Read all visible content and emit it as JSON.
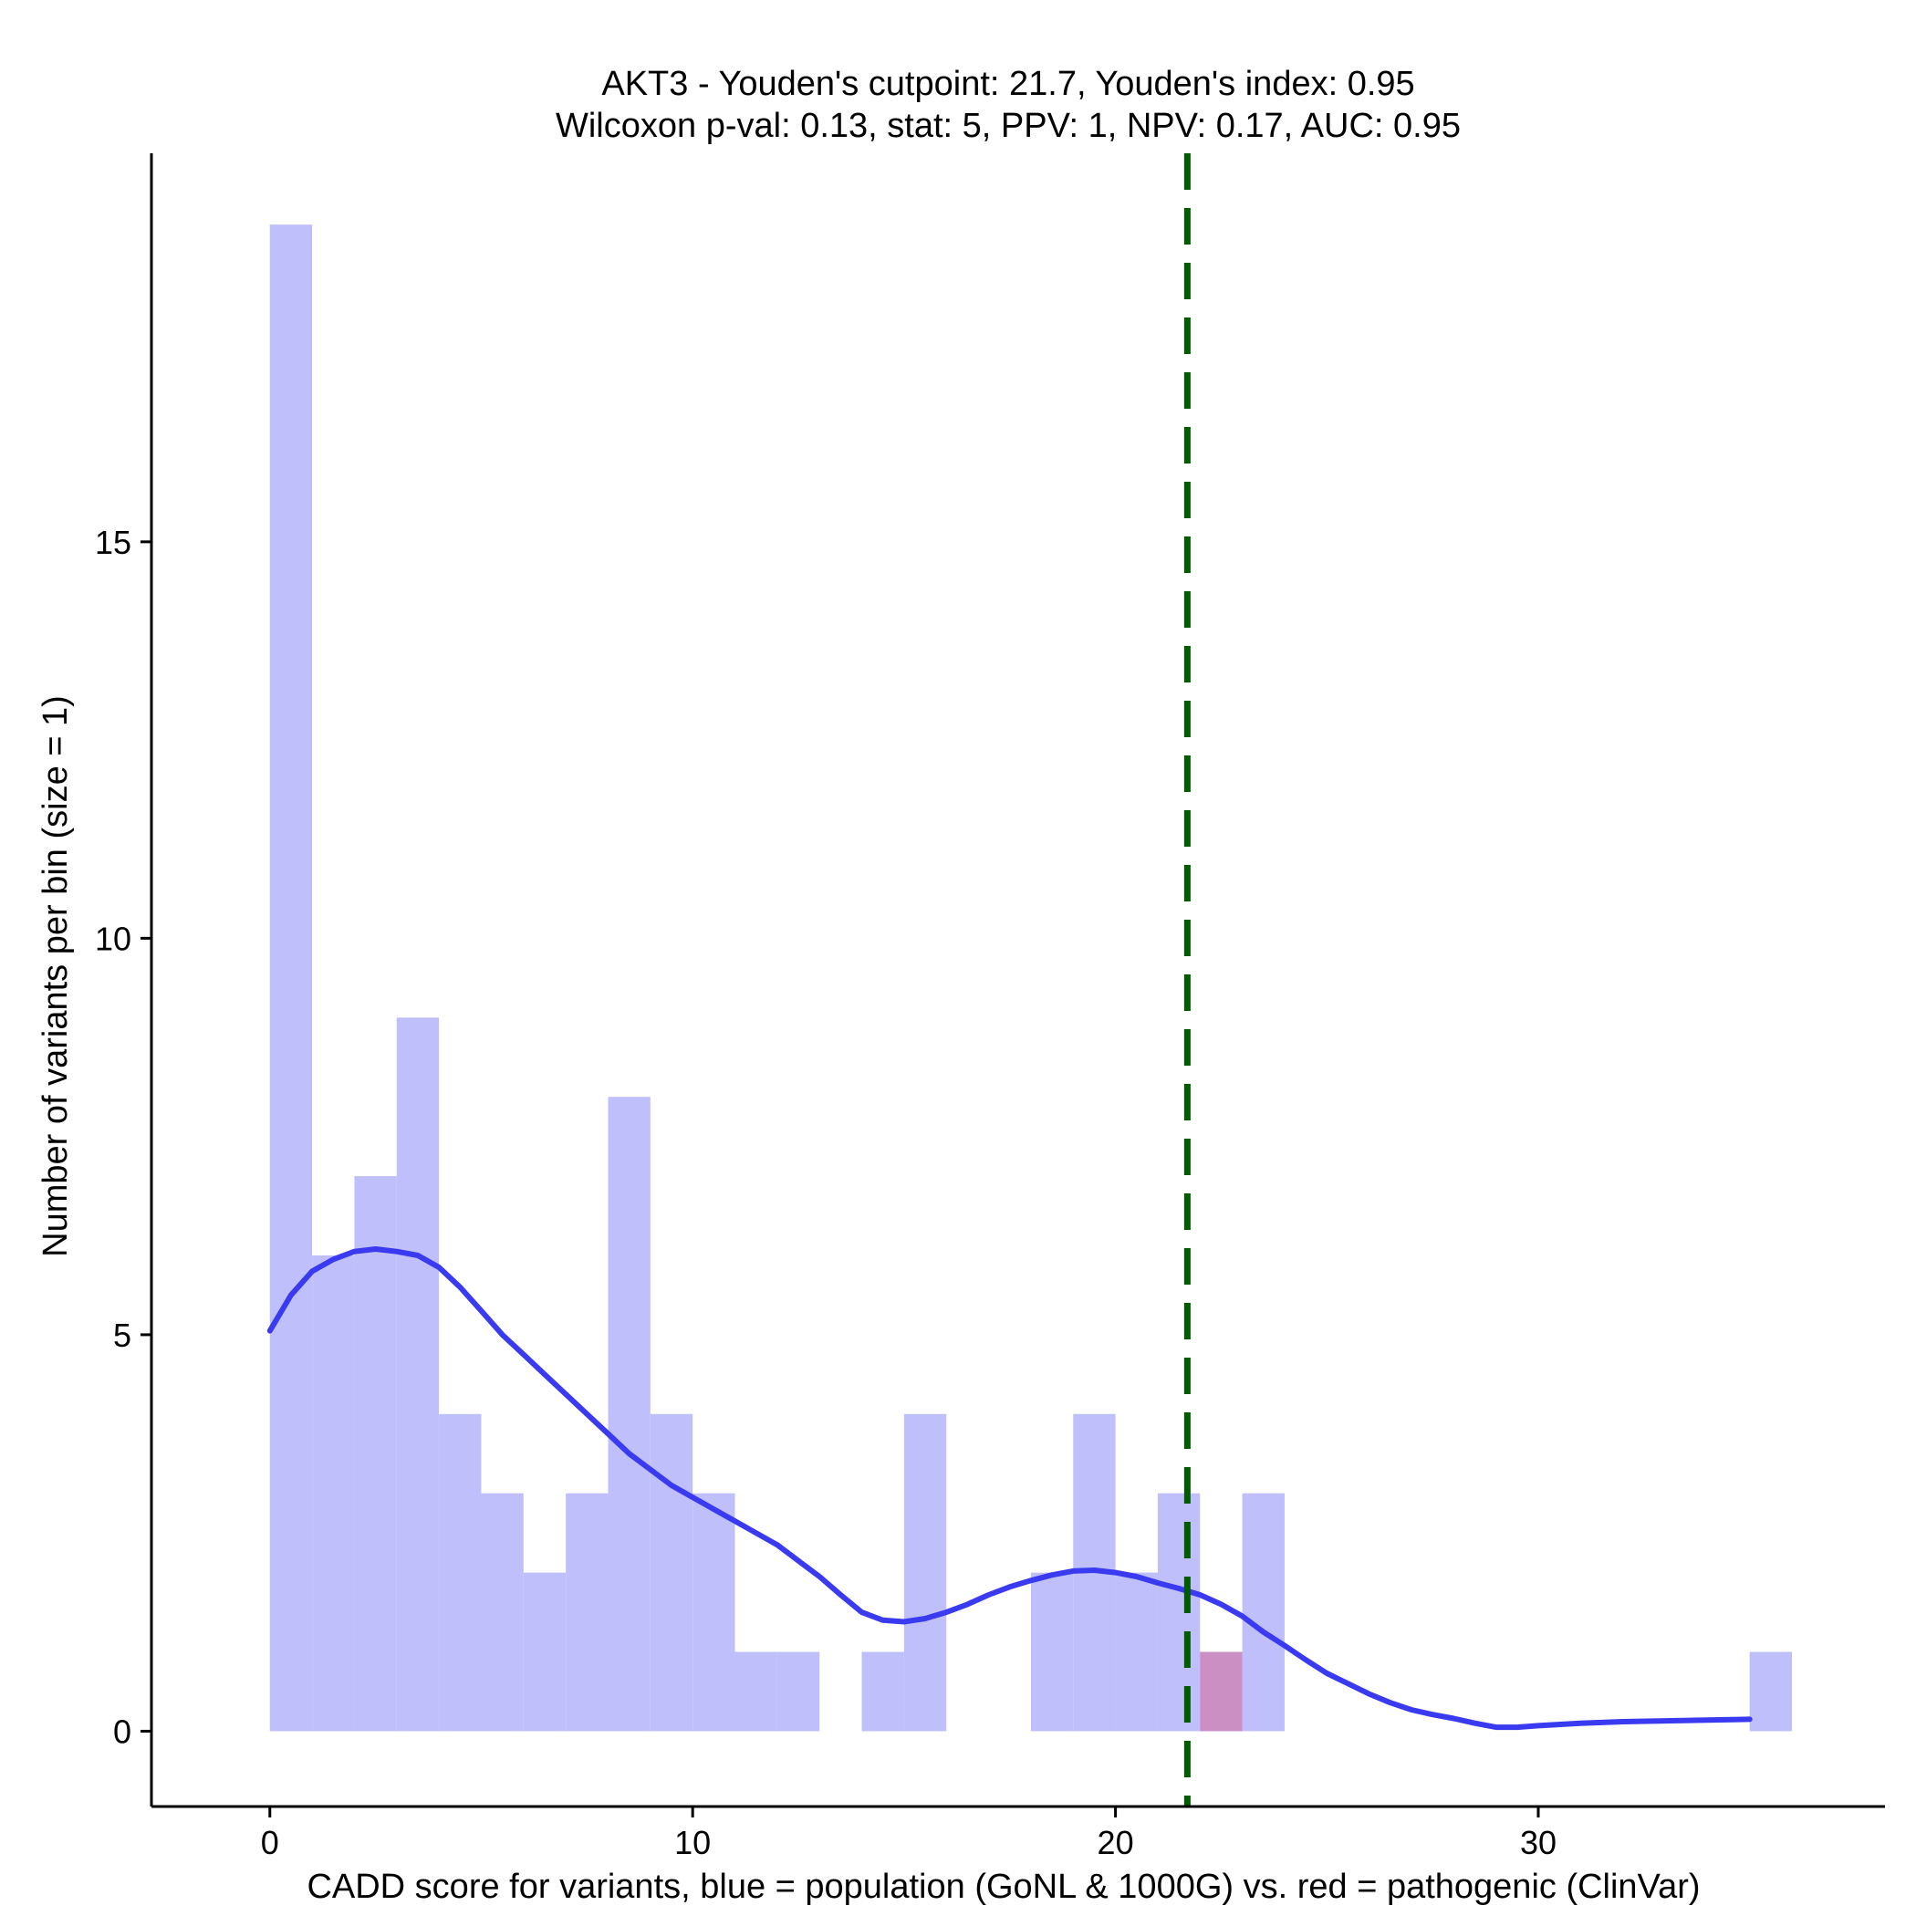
{
  "chart_data": {
    "type": "bar",
    "title": "AKT3 - Youden's cutpoint: 21.7, Youden's index: 0.95",
    "subtitle": "Wilcoxon p-val: 0.13, stat: 5, PPV: 1, NPV: 0.17, AUC: 0.95",
    "xlabel": "CADD score for variants, blue = population (GoNL & 1000G) vs. red = pathogenic (ClinVar)",
    "ylabel": "Number of variants per bin (size = 1)",
    "xlim": [
      -2.8,
      38.2
    ],
    "ylim": [
      -0.95,
      19.9
    ],
    "x_ticks": [
      0,
      10,
      20,
      30
    ],
    "y_ticks": [
      0,
      5,
      10,
      15
    ],
    "bin_width": 1,
    "grid": false,
    "series": [
      {
        "color": "#bfbffb",
        "bins": [
          {
            "x": 0,
            "count": 19
          },
          {
            "x": 1,
            "count": 6
          },
          {
            "x": 2,
            "count": 7
          },
          {
            "x": 3,
            "count": 9
          },
          {
            "x": 4,
            "count": 4
          },
          {
            "x": 5,
            "count": 3
          },
          {
            "x": 6,
            "count": 2
          },
          {
            "x": 7,
            "count": 3
          },
          {
            "x": 8,
            "count": 8
          },
          {
            "x": 9,
            "count": 4
          },
          {
            "x": 10,
            "count": 3
          },
          {
            "x": 11,
            "count": 1
          },
          {
            "x": 12,
            "count": 1
          },
          {
            "x": 14,
            "count": 1
          },
          {
            "x": 15,
            "count": 4
          },
          {
            "x": 18,
            "count": 2
          },
          {
            "x": 19,
            "count": 4
          },
          {
            "x": 20,
            "count": 2
          },
          {
            "x": 21,
            "count": 3
          },
          {
            "x": 22,
            "count": 1
          },
          {
            "x": 23,
            "count": 3
          },
          {
            "x": 35,
            "count": 1
          }
        ]
      },
      {
        "color": "#cc8fc4",
        "bins": [
          {
            "x": 22,
            "count": 1
          }
        ]
      }
    ],
    "density_curve": {
      "color": "#3a3af0",
      "points": [
        [
          0,
          5.05
        ],
        [
          0.5,
          5.5
        ],
        [
          1,
          5.8
        ],
        [
          1.5,
          5.95
        ],
        [
          2,
          6.05
        ],
        [
          2.5,
          6.08
        ],
        [
          3,
          6.05
        ],
        [
          3.5,
          6.0
        ],
        [
          4,
          5.85
        ],
        [
          4.5,
          5.6
        ],
        [
          5,
          5.3
        ],
        [
          5.5,
          5.0
        ],
        [
          6,
          4.75
        ],
        [
          6.5,
          4.5
        ],
        [
          7,
          4.25
        ],
        [
          7.5,
          4.0
        ],
        [
          8,
          3.75
        ],
        [
          8.5,
          3.5
        ],
        [
          9,
          3.3
        ],
        [
          9.5,
          3.1
        ],
        [
          10,
          2.95
        ],
        [
          10.5,
          2.8
        ],
        [
          11,
          2.65
        ],
        [
          11.5,
          2.5
        ],
        [
          12,
          2.35
        ],
        [
          12.5,
          2.15
        ],
        [
          13,
          1.95
        ],
        [
          13.5,
          1.72
        ],
        [
          14,
          1.5
        ],
        [
          14.5,
          1.4
        ],
        [
          15,
          1.38
        ],
        [
          15.5,
          1.42
        ],
        [
          16,
          1.5
        ],
        [
          16.5,
          1.6
        ],
        [
          17,
          1.72
        ],
        [
          17.5,
          1.82
        ],
        [
          18,
          1.9
        ],
        [
          18.5,
          1.97
        ],
        [
          19,
          2.02
        ],
        [
          19.5,
          2.03
        ],
        [
          20,
          2.0
        ],
        [
          20.5,
          1.95
        ],
        [
          21,
          1.87
        ],
        [
          21.5,
          1.8
        ],
        [
          22,
          1.72
        ],
        [
          22.5,
          1.6
        ],
        [
          23,
          1.45
        ],
        [
          23.5,
          1.25
        ],
        [
          24,
          1.08
        ],
        [
          24.5,
          0.9
        ],
        [
          25,
          0.73
        ],
        [
          25.5,
          0.6
        ],
        [
          26,
          0.47
        ],
        [
          26.5,
          0.36
        ],
        [
          27,
          0.27
        ],
        [
          27.5,
          0.21
        ],
        [
          28,
          0.16
        ],
        [
          28.5,
          0.1
        ],
        [
          29,
          0.05
        ],
        [
          29.5,
          0.05
        ],
        [
          30,
          0.07
        ],
        [
          31,
          0.1
        ],
        [
          32,
          0.12
        ],
        [
          33,
          0.13
        ],
        [
          34,
          0.14
        ],
        [
          35,
          0.15
        ]
      ]
    },
    "cutpoint": {
      "x": 21.7,
      "color": "#005a00",
      "style": "dashed"
    }
  }
}
